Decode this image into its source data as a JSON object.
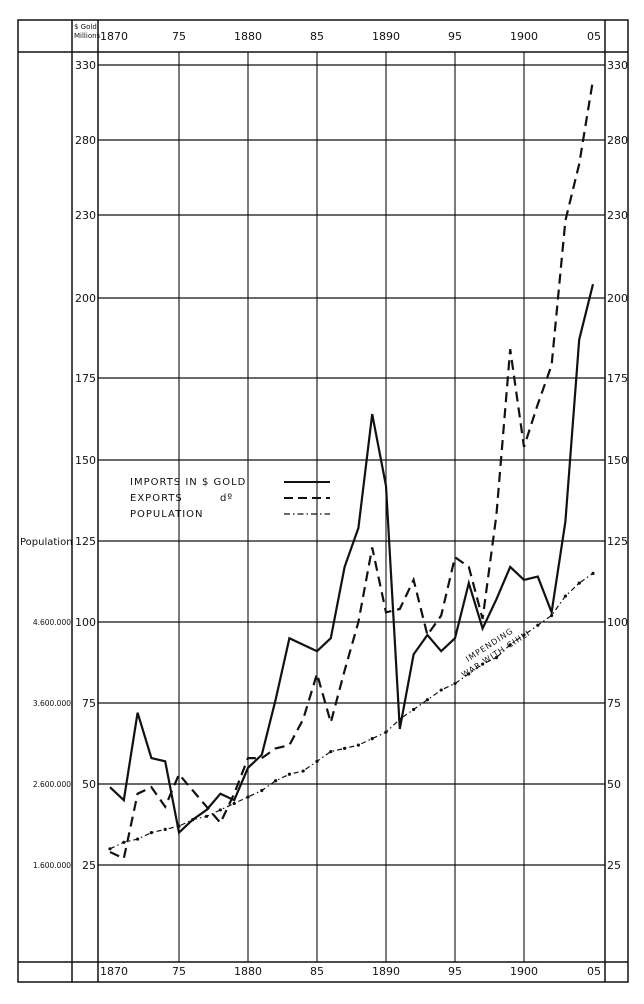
{
  "chart_data": {
    "type": "line",
    "y_unit_label": [
      "$ Gold",
      "Millions"
    ],
    "population_axis_label": "Population",
    "x": [
      1870,
      1871,
      1872,
      1873,
      1874,
      1875,
      1876,
      1877,
      1878,
      1879,
      1880,
      1881,
      1882,
      1883,
      1884,
      1885,
      1886,
      1887,
      1888,
      1889,
      1890,
      1891,
      1892,
      1893,
      1894,
      1895,
      1896,
      1897,
      1898,
      1899,
      1900,
      1901,
      1902,
      1903,
      1904,
      1905
    ],
    "x_tick_labels": [
      {
        "year": 1870,
        "label": "1870"
      },
      {
        "year": 1875,
        "label": "75"
      },
      {
        "year": 1880,
        "label": "1880"
      },
      {
        "year": 1885,
        "label": "85"
      },
      {
        "year": 1890,
        "label": "1890"
      },
      {
        "year": 1895,
        "label": "95"
      },
      {
        "year": 1900,
        "label": "1900"
      },
      {
        "year": 1905,
        "label": "05"
      }
    ],
    "y_ticks": [
      25,
      50,
      75,
      100,
      125,
      150,
      175,
      200,
      230,
      280,
      330
    ],
    "y_tick_labels": [
      "25",
      "50",
      "75",
      "100",
      "125",
      "150",
      "175",
      "200",
      "230",
      "280",
      "330"
    ],
    "population_ticks": [
      {
        "value": 25,
        "label": "1.600.000"
      },
      {
        "value": 50,
        "label": "2.600.000"
      },
      {
        "value": 75,
        "label": "3.600.000"
      },
      {
        "value": 100,
        "label": "4.600.000"
      }
    ],
    "ylim": [
      25,
      330
    ],
    "xlim": [
      1870,
      1905
    ],
    "grid": true,
    "legend_placement": "center-left",
    "series": [
      {
        "name": "IMPORTS IN $ GOLD",
        "style": "solid",
        "color": "#111111",
        "values": [
          49,
          45,
          72,
          58,
          57,
          35,
          39,
          42,
          47,
          45,
          55,
          59,
          76,
          95,
          93,
          91,
          95,
          117,
          129,
          164,
          142,
          67,
          90,
          96,
          91,
          95,
          112,
          98,
          107,
          117,
          113,
          114,
          103,
          131,
          187,
          205
        ]
      },
      {
        "name": "EXPORTS  dº",
        "style": "dashed",
        "color": "#111111",
        "values": [
          29,
          27,
          47,
          49,
          43,
          53,
          48,
          43,
          38,
          47,
          58,
          58,
          61,
          62,
          70,
          84,
          69,
          85,
          100,
          123,
          103,
          104,
          113,
          96,
          102,
          120,
          117,
          101,
          133,
          184,
          154,
          167,
          179,
          228,
          264,
          320
        ]
      },
      {
        "name": "POPULATION",
        "style": "dash-dot",
        "color": "#111111",
        "values": [
          30,
          32,
          33,
          35,
          36,
          37,
          39,
          40,
          42,
          44,
          46,
          48,
          51,
          53,
          54,
          57,
          60,
          61,
          62,
          64,
          66,
          70,
          73,
          76,
          79,
          81,
          84,
          87,
          89,
          93,
          96,
          99,
          102,
          108,
          112,
          115
        ]
      }
    ],
    "legend": {
      "imports": "IMPORTS IN $ GOLD",
      "exports": "EXPORTS",
      "exports_ditto": "dº",
      "population": "POPULATION"
    },
    "annotations": [
      "IMPENDING",
      "WAR WITH CHILI"
    ]
  }
}
